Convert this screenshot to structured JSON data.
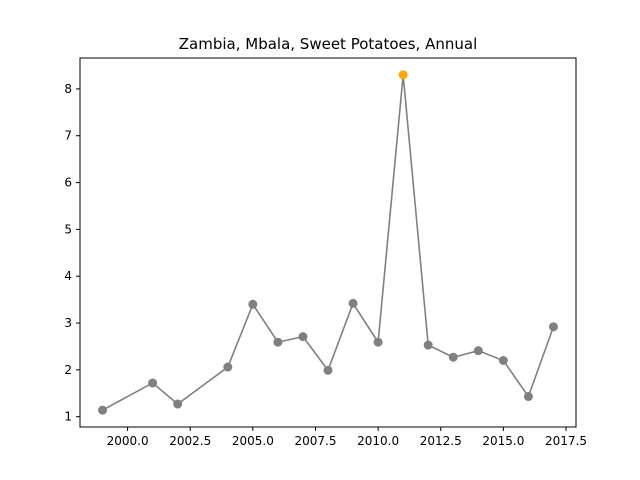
{
  "chart_data": {
    "type": "line",
    "title": "Zambia, Mbala, Sweet Potatoes, Annual",
    "xlabel": "",
    "ylabel": "",
    "xlim": [
      1998.1,
      2017.9
    ],
    "ylim": [
      0.78,
      8.66
    ],
    "x_ticks": [
      2000.0,
      2002.5,
      2005.0,
      2007.5,
      2010.0,
      2012.5,
      2015.0,
      2017.5
    ],
    "x_tick_labels": [
      "2000.0",
      "2002.5",
      "2005.0",
      "2007.5",
      "2010.0",
      "2012.5",
      "2015.0",
      "2017.5"
    ],
    "y_ticks": [
      1,
      2,
      3,
      4,
      5,
      6,
      7,
      8
    ],
    "y_tick_labels": [
      "1",
      "2",
      "3",
      "4",
      "5",
      "6",
      "7",
      "8"
    ],
    "grid": false,
    "series": [
      {
        "color": "#808080",
        "marker": "circle",
        "x": [
          1999,
          2001,
          2002,
          2004,
          2005,
          2006,
          2007,
          2008,
          2009,
          2010,
          2011,
          2012,
          2013,
          2014,
          2015,
          2016,
          2017
        ],
        "values": [
          1.14,
          1.72,
          1.27,
          2.06,
          3.4,
          2.59,
          2.71,
          1.99,
          3.42,
          2.59,
          8.3,
          2.53,
          2.27,
          2.41,
          2.2,
          1.43,
          2.92
        ]
      }
    ],
    "highlight": {
      "x": 2011,
      "value": 8.3,
      "color": "#ffa500"
    }
  }
}
